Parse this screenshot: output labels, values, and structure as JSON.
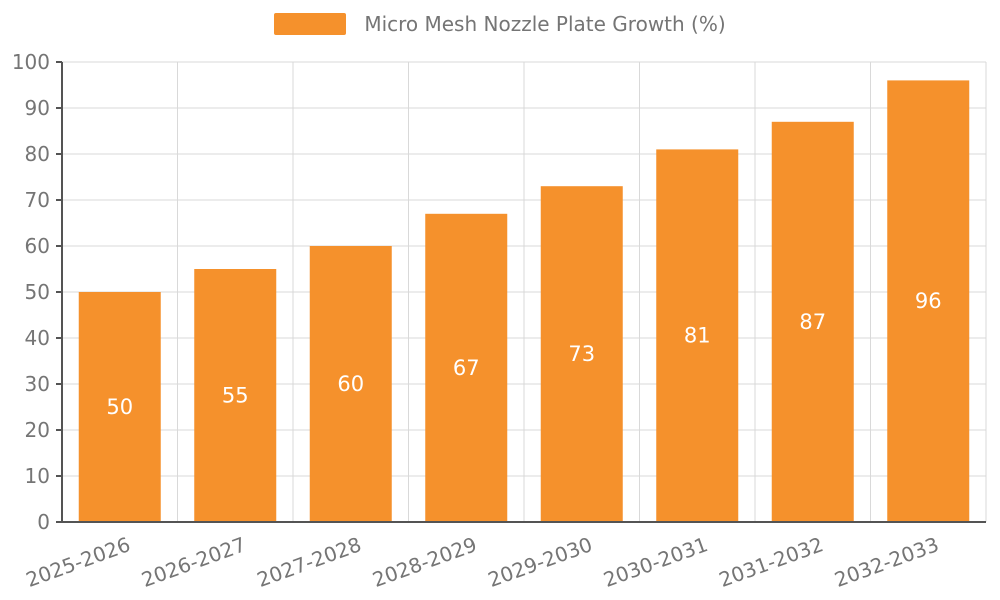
{
  "chart_data": {
    "type": "bar",
    "title": "Micro Mesh Nozzle Plate Growth (%)",
    "categories": [
      "2025-2026",
      "2026-2027",
      "2027-2028",
      "2028-2029",
      "2029-2030",
      "2030-2031",
      "2031-2032",
      "2032-2033"
    ],
    "values": [
      50,
      55,
      60,
      67,
      73,
      81,
      87,
      96
    ],
    "xlabel": "",
    "ylabel": "",
    "ylim": [
      0,
      100
    ],
    "ytick_step": 10,
    "grid": true,
    "legend_position": "top",
    "x_label_rotation": -20,
    "colors": {
      "bar": "#F5912C",
      "value_label": "#ffffff",
      "axis_line": "#545454",
      "tick_text": "#757575",
      "grid_line": "#d9d9d9",
      "title_text": "#757575"
    }
  }
}
